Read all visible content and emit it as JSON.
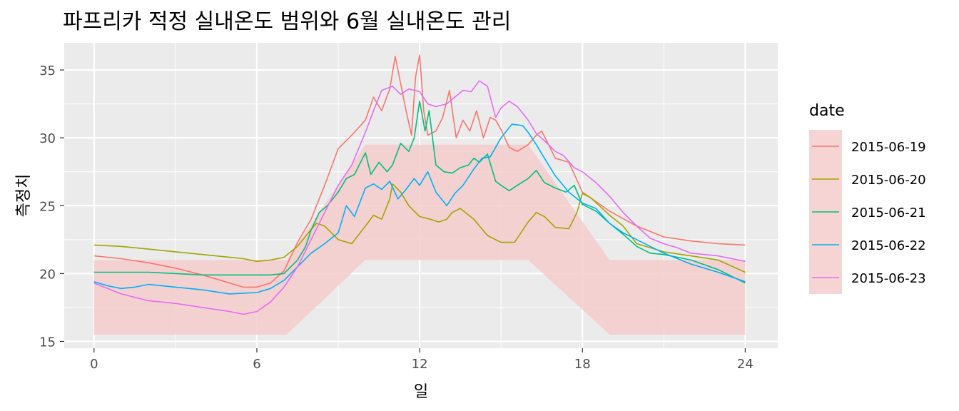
{
  "chart_data": {
    "type": "line",
    "title": "파프리카 적정 실내온도 범위와 6월 실내온도 관리",
    "xlabel": "일",
    "ylabel": "측정치",
    "xlim": [
      -1.1,
      25.2
    ],
    "ylim": [
      14.5,
      37.0
    ],
    "x_ticks": [
      0,
      6,
      12,
      18,
      24
    ],
    "x_tick_labels": [
      "0",
      "6",
      "12",
      "18",
      "24"
    ],
    "y_ticks": [
      15,
      20,
      25,
      30,
      35
    ],
    "y_tick_labels": [
      "15",
      "20",
      "25",
      "30",
      "35"
    ],
    "grid": true,
    "legend": {
      "title": "date",
      "position": "right"
    },
    "band": {
      "fill": "#f4cccc",
      "lower": [
        [
          0,
          15.5
        ],
        [
          7.1,
          15.5
        ],
        [
          10,
          21
        ],
        [
          16,
          21
        ],
        [
          19,
          15.5
        ],
        [
          24,
          15.5
        ]
      ],
      "upper": [
        [
          0,
          21
        ],
        [
          7.1,
          21
        ],
        [
          10,
          29.5
        ],
        [
          16,
          29.5
        ],
        [
          19,
          21
        ],
        [
          24,
          21
        ]
      ]
    },
    "series": [
      {
        "name": "2015-06-19",
        "color": "#F8766D",
        "points": [
          [
            0,
            21.3
          ],
          [
            1,
            21.1
          ],
          [
            2,
            20.8
          ],
          [
            3,
            20.4
          ],
          [
            4,
            19.9
          ],
          [
            5,
            19.3
          ],
          [
            5.5,
            19.0
          ],
          [
            6,
            19.0
          ],
          [
            6.5,
            19.3
          ],
          [
            7,
            20.2
          ],
          [
            7.5,
            22.3
          ],
          [
            8,
            24.0
          ],
          [
            8.5,
            26.5
          ],
          [
            9,
            29.2
          ],
          [
            9.5,
            30.2
          ],
          [
            10,
            31.3
          ],
          [
            10.3,
            33.0
          ],
          [
            10.6,
            32.0
          ],
          [
            10.9,
            33.6
          ],
          [
            11.1,
            36.0
          ],
          [
            11.3,
            34.0
          ],
          [
            11.5,
            32.0
          ],
          [
            11.7,
            30.2
          ],
          [
            11.85,
            34.5
          ],
          [
            12,
            36.1
          ],
          [
            12.15,
            32.0
          ],
          [
            12.3,
            30.2
          ],
          [
            12.6,
            30.5
          ],
          [
            12.85,
            31.5
          ],
          [
            13.1,
            33.5
          ],
          [
            13.35,
            30.0
          ],
          [
            13.6,
            31.3
          ],
          [
            13.85,
            30.5
          ],
          [
            14.1,
            32.0
          ],
          [
            14.35,
            30.0
          ],
          [
            14.6,
            31.5
          ],
          [
            14.8,
            31.3
          ],
          [
            15.0,
            30.6
          ],
          [
            15.3,
            29.3
          ],
          [
            15.6,
            29.0
          ],
          [
            16.0,
            29.5
          ],
          [
            16.3,
            30.2
          ],
          [
            16.5,
            30.5
          ],
          [
            17.0,
            28.5
          ],
          [
            17.5,
            28.2
          ],
          [
            18,
            26.0
          ],
          [
            19,
            24.6
          ],
          [
            20,
            23.5
          ],
          [
            21,
            22.7
          ],
          [
            22,
            22.4
          ],
          [
            23,
            22.2
          ],
          [
            24,
            22.1
          ]
        ]
      },
      {
        "name": "2015-06-20",
        "color": "#A3A500",
        "points": [
          [
            0,
            22.1
          ],
          [
            1,
            22.0
          ],
          [
            2,
            21.8
          ],
          [
            3,
            21.6
          ],
          [
            4,
            21.4
          ],
          [
            5,
            21.2
          ],
          [
            5.5,
            21.1
          ],
          [
            6,
            20.9
          ],
          [
            6.5,
            21.0
          ],
          [
            7,
            21.2
          ],
          [
            7.5,
            22.0
          ],
          [
            7.9,
            23.0
          ],
          [
            8.2,
            23.7
          ],
          [
            8.5,
            23.5
          ],
          [
            9,
            22.5
          ],
          [
            9.5,
            22.2
          ],
          [
            10,
            23.5
          ],
          [
            10.3,
            24.3
          ],
          [
            10.6,
            24.0
          ],
          [
            10.9,
            25.5
          ],
          [
            11,
            26.6
          ],
          [
            11.3,
            26.0
          ],
          [
            11.6,
            25.0
          ],
          [
            12,
            24.2
          ],
          [
            12.4,
            24.0
          ],
          [
            12.7,
            23.8
          ],
          [
            13.0,
            24.0
          ],
          [
            13.2,
            24.5
          ],
          [
            13.5,
            24.8
          ],
          [
            14,
            24.0
          ],
          [
            14.5,
            22.8
          ],
          [
            15,
            22.3
          ],
          [
            15.5,
            22.3
          ],
          [
            16,
            23.8
          ],
          [
            16.3,
            24.5
          ],
          [
            16.6,
            24.2
          ],
          [
            17,
            23.4
          ],
          [
            17.5,
            23.3
          ],
          [
            17.8,
            24.5
          ],
          [
            18,
            25.9
          ],
          [
            18.3,
            25.6
          ],
          [
            19,
            24.3
          ],
          [
            19.5,
            23.5
          ],
          [
            20,
            22.2
          ],
          [
            21,
            21.6
          ],
          [
            22,
            21.3
          ],
          [
            23,
            21.0
          ],
          [
            24,
            20.1
          ]
        ]
      },
      {
        "name": "2015-06-21",
        "color": "#00BF7D",
        "points": [
          [
            0,
            20.1
          ],
          [
            1,
            20.1
          ],
          [
            2,
            20.1
          ],
          [
            3,
            20.0
          ],
          [
            4,
            19.9
          ],
          [
            5,
            19.9
          ],
          [
            6,
            19.9
          ],
          [
            6.5,
            19.9
          ],
          [
            7,
            20.0
          ],
          [
            7.5,
            21.0
          ],
          [
            7.8,
            22.0
          ],
          [
            8,
            23.2
          ],
          [
            8.3,
            24.5
          ],
          [
            8.6,
            25.0
          ],
          [
            9,
            26.0
          ],
          [
            9.3,
            27.0
          ],
          [
            9.6,
            27.3
          ],
          [
            10,
            28.9
          ],
          [
            10.2,
            27.3
          ],
          [
            10.5,
            28.2
          ],
          [
            10.8,
            27.5
          ],
          [
            11,
            28.0
          ],
          [
            11.3,
            29.6
          ],
          [
            11.6,
            29.0
          ],
          [
            11.8,
            30.0
          ],
          [
            12,
            32.7
          ],
          [
            12.2,
            30.5
          ],
          [
            12.35,
            32.0
          ],
          [
            12.6,
            28.0
          ],
          [
            12.9,
            27.5
          ],
          [
            13.2,
            27.4
          ],
          [
            13.5,
            27.8
          ],
          [
            13.8,
            28.0
          ],
          [
            14,
            28.5
          ],
          [
            14.2,
            28.2
          ],
          [
            14.5,
            28.8
          ],
          [
            14.8,
            26.8
          ],
          [
            15,
            26.5
          ],
          [
            15.3,
            26.1
          ],
          [
            15.6,
            26.5
          ],
          [
            16,
            27.0
          ],
          [
            16.3,
            27.6
          ],
          [
            16.6,
            26.7
          ],
          [
            17,
            26.3
          ],
          [
            17.4,
            26.0
          ],
          [
            17.7,
            26.5
          ],
          [
            18,
            25.1
          ],
          [
            18.5,
            24.6
          ],
          [
            19,
            23.7
          ],
          [
            19.5,
            22.9
          ],
          [
            20,
            22.0
          ],
          [
            20.5,
            21.5
          ],
          [
            21,
            21.4
          ],
          [
            22,
            21.0
          ],
          [
            23,
            20.3
          ],
          [
            24,
            19.3
          ]
        ]
      },
      {
        "name": "2015-06-22",
        "color": "#00B0F6",
        "points": [
          [
            0,
            19.4
          ],
          [
            0.5,
            19.1
          ],
          [
            1,
            18.9
          ],
          [
            1.5,
            19.0
          ],
          [
            2,
            19.2
          ],
          [
            3,
            19.0
          ],
          [
            4,
            18.8
          ],
          [
            5,
            18.5
          ],
          [
            6,
            18.6
          ],
          [
            6.5,
            18.9
          ],
          [
            7,
            19.5
          ],
          [
            7.5,
            20.5
          ],
          [
            8,
            21.5
          ],
          [
            8.5,
            22.2
          ],
          [
            9,
            23.0
          ],
          [
            9.3,
            25.0
          ],
          [
            9.6,
            24.2
          ],
          [
            10,
            26.3
          ],
          [
            10.3,
            26.6
          ],
          [
            10.6,
            26.2
          ],
          [
            10.9,
            26.8
          ],
          [
            11.2,
            25.5
          ],
          [
            11.5,
            26.2
          ],
          [
            11.8,
            27.0
          ],
          [
            12,
            26.5
          ],
          [
            12.3,
            27.5
          ],
          [
            12.6,
            26.0
          ],
          [
            13,
            25.0
          ],
          [
            13.3,
            25.9
          ],
          [
            13.6,
            26.5
          ],
          [
            14,
            27.7
          ],
          [
            14.3,
            28.5
          ],
          [
            14.6,
            28.6
          ],
          [
            15,
            30.0
          ],
          [
            15.4,
            31.0
          ],
          [
            15.8,
            30.9
          ],
          [
            16,
            30.4
          ],
          [
            16.3,
            29.5
          ],
          [
            16.6,
            28.5
          ],
          [
            17,
            27.2
          ],
          [
            17.5,
            26.0
          ],
          [
            18,
            25.2
          ],
          [
            18.5,
            24.8
          ],
          [
            19,
            23.7
          ],
          [
            19.5,
            23.0
          ],
          [
            20,
            22.5
          ],
          [
            20.5,
            22.0
          ],
          [
            21,
            21.5
          ],
          [
            22,
            20.7
          ],
          [
            23,
            20.1
          ],
          [
            24,
            19.4
          ]
        ]
      },
      {
        "name": "2015-06-23",
        "color": "#E76BF3",
        "points": [
          [
            0,
            19.3
          ],
          [
            0.5,
            18.9
          ],
          [
            1,
            18.5
          ],
          [
            2,
            18.0
          ],
          [
            3,
            17.8
          ],
          [
            4,
            17.5
          ],
          [
            5,
            17.2
          ],
          [
            5.5,
            17.0
          ],
          [
            6,
            17.2
          ],
          [
            6.5,
            17.9
          ],
          [
            7,
            19.0
          ],
          [
            7.5,
            20.5
          ],
          [
            8,
            22.5
          ],
          [
            8.5,
            24.5
          ],
          [
            9,
            26.5
          ],
          [
            9.5,
            28.0
          ],
          [
            10,
            30.4
          ],
          [
            10.3,
            32.0
          ],
          [
            10.6,
            33.5
          ],
          [
            11,
            33.8
          ],
          [
            11.3,
            33.2
          ],
          [
            11.6,
            33.6
          ],
          [
            12,
            33.4
          ],
          [
            12.3,
            32.5
          ],
          [
            12.6,
            32.3
          ],
          [
            13,
            32.5
          ],
          [
            13.3,
            33.0
          ],
          [
            13.6,
            33.5
          ],
          [
            13.9,
            33.4
          ],
          [
            14.2,
            34.2
          ],
          [
            14.5,
            33.8
          ],
          [
            14.8,
            31.5
          ],
          [
            15,
            32.2
          ],
          [
            15.3,
            32.7
          ],
          [
            15.6,
            32.3
          ],
          [
            16,
            31.3
          ],
          [
            16.3,
            30.3
          ],
          [
            16.6,
            29.8
          ],
          [
            17,
            29.0
          ],
          [
            17.3,
            28.7
          ],
          [
            17.7,
            27.8
          ],
          [
            18,
            27.5
          ],
          [
            18.5,
            26.7
          ],
          [
            19,
            25.7
          ],
          [
            19.5,
            24.5
          ],
          [
            20,
            23.5
          ],
          [
            20.5,
            22.6
          ],
          [
            21,
            22.2
          ],
          [
            21.5,
            21.9
          ],
          [
            22,
            21.5
          ],
          [
            23,
            21.3
          ],
          [
            24,
            20.9
          ]
        ]
      }
    ]
  }
}
